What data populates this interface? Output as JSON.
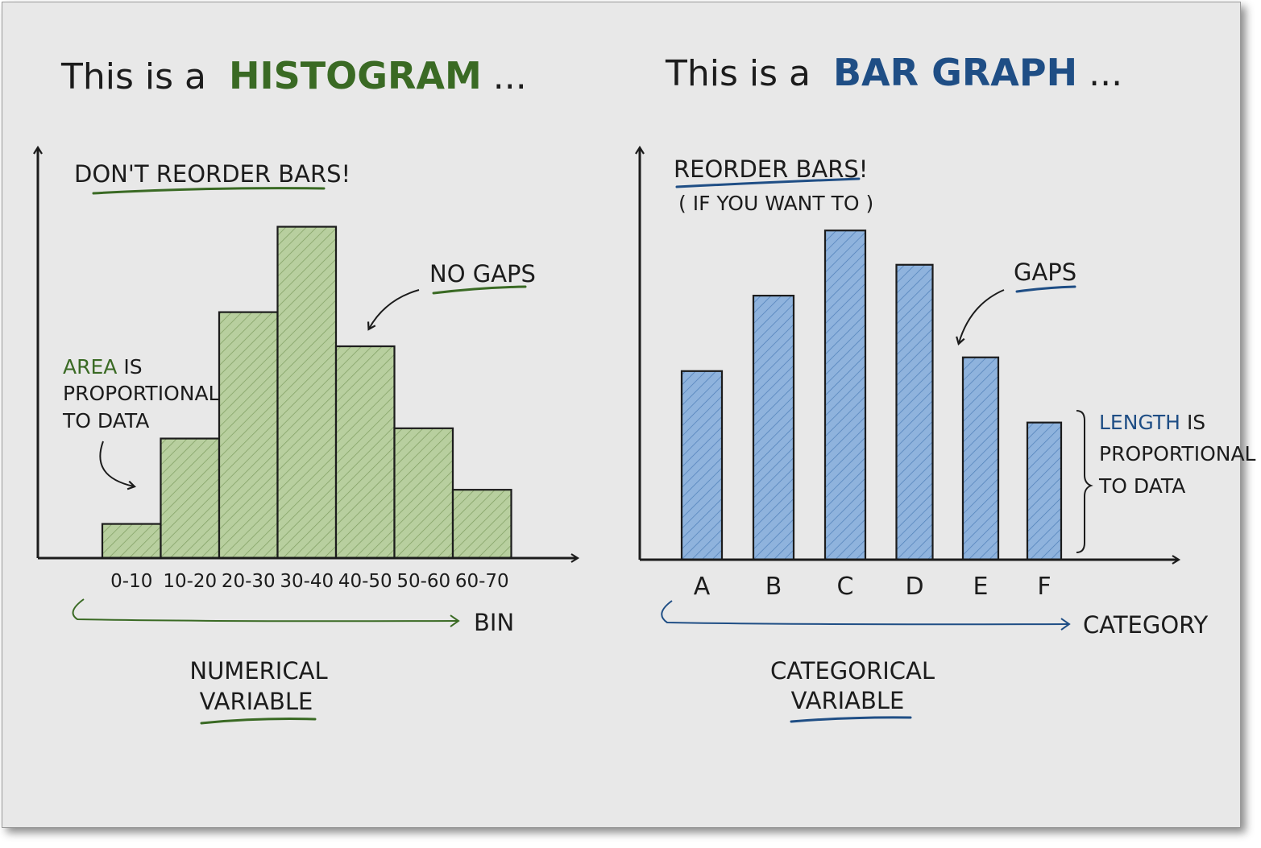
{
  "colors": {
    "background": "#e8e8e8",
    "ink": "#1c1c1c",
    "green_text": "#3a6a24",
    "green_fill": "#b8cf9f",
    "blue_text": "#1f4e85",
    "blue_fill": "#8fb3dd"
  },
  "histogram": {
    "title_prefix": "This is a",
    "title_highlight": "HISTOGRAM",
    "title_suffix": "...",
    "top_note": "DON'T REORDER BARS!",
    "gap_note": "NO GAPS",
    "area_note": {
      "highlight": "AREA",
      "line1_rest": " IS",
      "line2": "PROPORTIONAL",
      "line3": "TO DATA"
    },
    "axis_label": "BIN",
    "variable_line1": "NUMERICAL",
    "variable_line2": "VARIABLE"
  },
  "bargraph": {
    "title_prefix": "This is a",
    "title_highlight": "BAR GRAPH",
    "title_suffix": "...",
    "top_note": "REORDER BARS!",
    "top_subnote": "( IF YOU WANT TO )",
    "gap_note": "GAPS",
    "length_note": {
      "highlight": "LENGTH",
      "line1_rest": " IS",
      "line2": "PROPORTIONAL",
      "line3": "TO DATA"
    },
    "axis_label": "CATEGORY",
    "variable_line1": "CATEGORICAL",
    "variable_line2": "VARIABLE"
  },
  "chart_data": [
    {
      "type": "bar",
      "categories": [
        "0-10",
        "10-20",
        "20-30",
        "30-40",
        "40-50",
        "50-60",
        "60-70"
      ],
      "values": [
        10,
        35,
        72,
        97,
        62,
        38,
        20
      ],
      "ylim": [
        0,
        120
      ]
    },
    {
      "type": "bar",
      "categories": [
        "A",
        "B",
        "C",
        "D",
        "E",
        "F"
      ],
      "values": [
        55,
        77,
        96,
        86,
        59,
        40
      ],
      "ylim": [
        0,
        120
      ]
    }
  ]
}
